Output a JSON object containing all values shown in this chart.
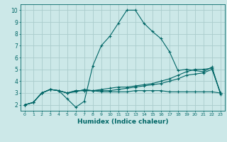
{
  "xlabel": "Humidex (Indice chaleur)",
  "ylabel": "",
  "bg_color": "#cce8e8",
  "grid_color": "#aacccc",
  "line_color": "#006666",
  "xlim": [
    -0.5,
    23.5
  ],
  "ylim": [
    1.5,
    10.5
  ],
  "xticks": [
    0,
    1,
    2,
    3,
    4,
    5,
    6,
    7,
    8,
    9,
    10,
    11,
    12,
    13,
    14,
    15,
    16,
    17,
    18,
    19,
    20,
    21,
    22,
    23
  ],
  "yticks": [
    2,
    3,
    4,
    5,
    6,
    7,
    8,
    9,
    10
  ],
  "series": [
    [
      2.0,
      2.2,
      3.0,
      3.3,
      3.2,
      2.5,
      1.8,
      2.3,
      5.3,
      7.0,
      7.8,
      8.9,
      10.0,
      10.0,
      8.9,
      8.2,
      7.6,
      6.5,
      4.9,
      5.0,
      4.9,
      4.8,
      5.2,
      2.9
    ],
    [
      2.0,
      2.2,
      3.0,
      3.3,
      3.2,
      3.0,
      3.1,
      3.3,
      3.2,
      3.2,
      3.2,
      3.3,
      3.4,
      3.5,
      3.6,
      3.7,
      3.8,
      4.0,
      4.2,
      4.5,
      4.6,
      4.7,
      5.0,
      3.0
    ],
    [
      2.0,
      2.2,
      3.0,
      3.3,
      3.2,
      3.0,
      3.2,
      3.2,
      3.2,
      3.1,
      3.1,
      3.1,
      3.1,
      3.2,
      3.2,
      3.2,
      3.2,
      3.1,
      3.1,
      3.1,
      3.1,
      3.1,
      3.1,
      3.0
    ],
    [
      2.0,
      2.2,
      3.0,
      3.3,
      3.2,
      3.0,
      3.2,
      3.2,
      3.2,
      3.3,
      3.4,
      3.5,
      3.5,
      3.6,
      3.7,
      3.8,
      4.0,
      4.2,
      4.5,
      4.8,
      5.0,
      5.0,
      5.1,
      3.0
    ]
  ]
}
